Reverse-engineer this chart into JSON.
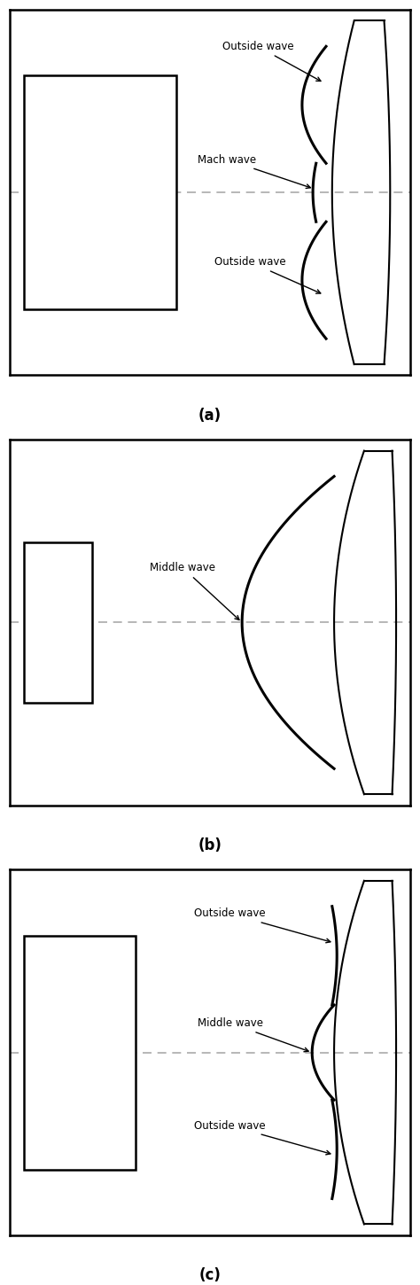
{
  "bg_color": "#ffffff",
  "line_color": "#000000",
  "dashed_color": "#aaaaaa",
  "panel_labels": [
    "(a)",
    "(b)",
    "(c)"
  ],
  "figsize": [
    4.74,
    14.5
  ],
  "dpi": 100
}
